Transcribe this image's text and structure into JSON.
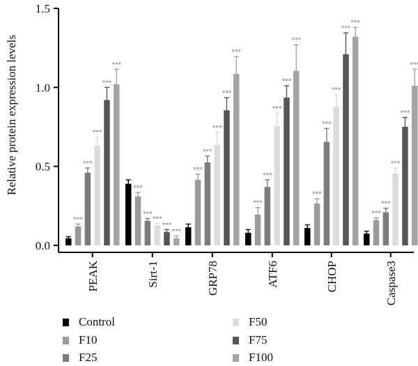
{
  "chart_data": {
    "type": "bar",
    "ylabel": "Relative protein expression levels",
    "xlabel": "",
    "ylim": [
      0,
      1.5
    ],
    "yticks": [
      "0.0",
      "0.5",
      "1.0",
      "1.5"
    ],
    "categories": [
      "PEAK",
      "Sirt-1",
      "GRP78",
      "ATF6",
      "CHOP",
      "Caspase3"
    ],
    "significance_label": "***",
    "series": [
      {
        "name": "Control",
        "color": "#000000",
        "values": [
          0.045,
          0.39,
          0.115,
          0.08,
          0.11,
          0.075
        ],
        "errors": [
          0.01,
          0.025,
          0.02,
          0.02,
          0.02,
          0.015
        ],
        "significant": [
          false,
          false,
          false,
          false,
          false,
          false
        ]
      },
      {
        "name": "F10",
        "color": "#9a9a9a",
        "values": [
          0.12,
          0.31,
          0.415,
          0.195,
          0.265,
          0.16
        ],
        "errors": [
          0.015,
          0.025,
          0.035,
          0.045,
          0.03,
          0.015
        ],
        "significant": [
          true,
          true,
          true,
          true,
          true,
          true
        ]
      },
      {
        "name": "F25",
        "color": "#7c7c7c",
        "values": [
          0.46,
          0.155,
          0.525,
          0.37,
          0.655,
          0.21
        ],
        "errors": [
          0.03,
          0.015,
          0.04,
          0.045,
          0.085,
          0.025
        ],
        "significant": [
          true,
          true,
          true,
          true,
          true,
          true
        ]
      },
      {
        "name": "F50",
        "color": "#dcdcdc",
        "values": [
          0.63,
          0.125,
          0.635,
          0.755,
          0.875,
          0.455
        ],
        "errors": [
          0.055,
          0.015,
          0.08,
          0.08,
          0.08,
          0.035
        ],
        "significant": [
          true,
          true,
          true,
          true,
          true,
          true
        ]
      },
      {
        "name": "F75",
        "color": "#555555",
        "values": [
          0.92,
          0.085,
          0.855,
          0.935,
          1.21,
          0.75
        ],
        "errors": [
          0.08,
          0.015,
          0.08,
          0.075,
          0.135,
          0.06
        ],
        "significant": [
          true,
          true,
          true,
          true,
          true,
          true
        ]
      },
      {
        "name": "F100",
        "color": "#a4a4a4",
        "values": [
          1.02,
          0.045,
          1.085,
          1.105,
          1.32,
          1.01
        ],
        "errors": [
          0.095,
          0.015,
          0.11,
          0.165,
          0.06,
          0.105
        ],
        "significant": [
          true,
          true,
          true,
          true,
          true,
          true
        ]
      }
    ],
    "legend_position": "bottom"
  }
}
